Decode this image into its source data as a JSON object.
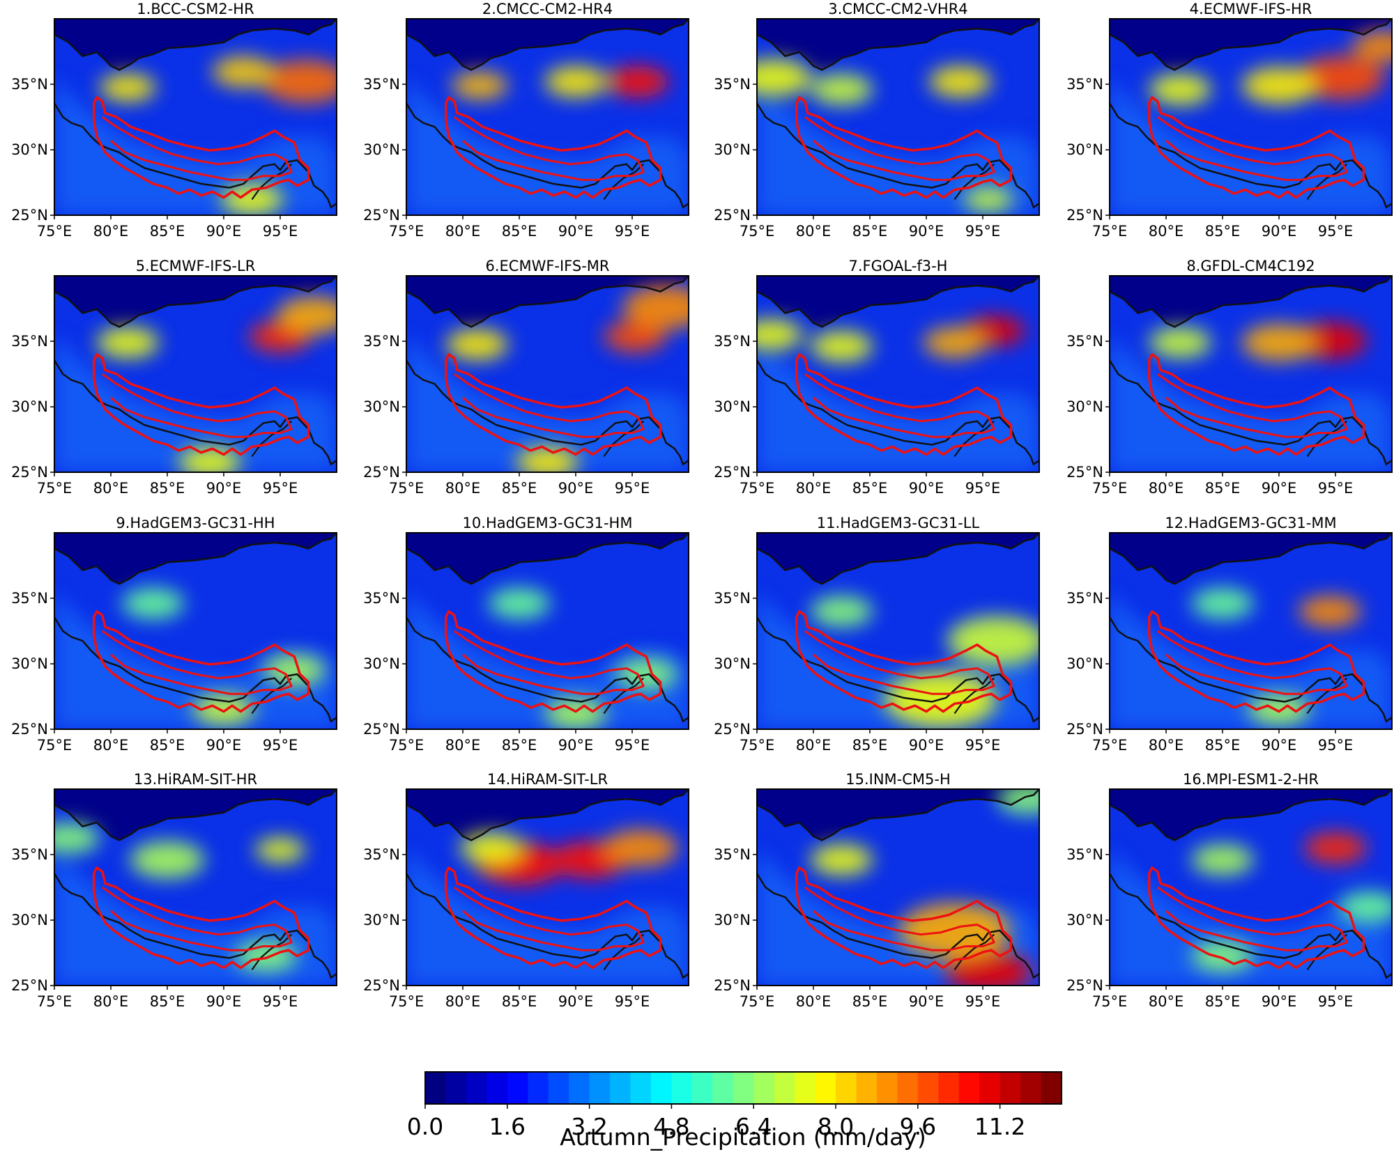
{
  "figure": {
    "colorbar": {
      "title": "Autumn_Precipitation (mm/day)",
      "ticks": [
        "0.0",
        "1.6",
        "3.2",
        "4.8",
        "6.4",
        "8.0",
        "9.6",
        "11.2"
      ],
      "range": [
        0.0,
        12.4
      ],
      "n_levels": 31,
      "colormap": "jet"
    },
    "x_ticks": [
      "75°E",
      "80°E",
      "85°E",
      "90°E",
      "95°E"
    ],
    "y_ticks": [
      "35°N",
      "30°N",
      "25°N"
    ],
    "lon_range": [
      75,
      100
    ],
    "lat_range": [
      25,
      40
    ],
    "colors": {
      "basin_outline": "#ee1111",
      "border_line": "#111111",
      "background_low": "#00007f"
    },
    "panels": [
      {
        "title": "1.BCC-CSM2-HR",
        "hot": [
          [
            0.6,
            0.26,
            0.35,
            0.09
          ],
          [
            0.8,
            0.89,
            0.32,
            0.14
          ],
          [
            0.65,
            0.67,
            0.27,
            0.1
          ],
          [
            0.55,
            0.7,
            0.92,
            0.1
          ]
        ]
      },
      {
        "title": "2.CMCC-CM2-HR4",
        "hot": [
          [
            0.68,
            0.26,
            0.34,
            0.09
          ],
          [
            0.95,
            0.82,
            0.32,
            0.1
          ],
          [
            0.6,
            0.6,
            0.32,
            0.1
          ]
        ]
      },
      {
        "title": "3.CMCC-CM2-VHR4",
        "hot": [
          [
            0.55,
            0.06,
            0.3,
            0.12
          ],
          [
            0.5,
            0.3,
            0.36,
            0.1
          ],
          [
            0.6,
            0.72,
            0.32,
            0.1
          ],
          [
            0.5,
            0.82,
            0.92,
            0.08
          ]
        ]
      },
      {
        "title": "4.ECMWF-IFS-HR",
        "hot": [
          [
            0.55,
            0.25,
            0.36,
            0.1
          ],
          [
            0.85,
            0.82,
            0.3,
            0.14
          ],
          [
            0.75,
            0.97,
            0.14,
            0.1
          ],
          [
            0.6,
            0.6,
            0.34,
            0.12
          ]
        ]
      },
      {
        "title": "5.ECMWF-IFS-LR",
        "hot": [
          [
            0.55,
            0.26,
            0.34,
            0.1
          ],
          [
            0.9,
            0.8,
            0.31,
            0.1
          ],
          [
            0.7,
            0.92,
            0.2,
            0.12
          ],
          [
            0.55,
            0.55,
            0.95,
            0.1
          ]
        ]
      },
      {
        "title": "6.ECMWF-IFS-MR",
        "hot": [
          [
            0.6,
            0.25,
            0.35,
            0.1
          ],
          [
            0.85,
            0.81,
            0.31,
            0.1
          ],
          [
            0.75,
            0.92,
            0.16,
            0.14
          ],
          [
            0.6,
            0.5,
            0.95,
            0.1
          ]
        ]
      },
      {
        "title": "7.FGOAL-f3-H",
        "hot": [
          [
            0.55,
            0.05,
            0.3,
            0.1
          ],
          [
            0.55,
            0.3,
            0.36,
            0.1
          ],
          [
            1.0,
            0.84,
            0.28,
            0.1
          ],
          [
            0.7,
            0.7,
            0.34,
            0.1
          ]
        ]
      },
      {
        "title": "8.GFDL-CM4C192",
        "hot": [
          [
            0.5,
            0.25,
            0.34,
            0.1
          ],
          [
            1.0,
            0.78,
            0.33,
            0.12
          ],
          [
            0.7,
            0.6,
            0.34,
            0.12
          ]
        ]
      },
      {
        "title": "9.HadGEM3-GC31-HH",
        "hot": [
          [
            0.5,
            0.6,
            0.9,
            0.1
          ],
          [
            0.45,
            0.85,
            0.7,
            0.1
          ],
          [
            0.35,
            0.35,
            0.36,
            0.1
          ]
        ]
      },
      {
        "title": "10.HadGEM3-GC31-HM",
        "hot": [
          [
            0.45,
            0.6,
            0.92,
            0.1
          ],
          [
            0.4,
            0.85,
            0.72,
            0.1
          ],
          [
            0.35,
            0.4,
            0.36,
            0.1
          ]
        ]
      },
      {
        "title": "11.HadGEM3-GC31-LL",
        "hot": [
          [
            0.55,
            0.65,
            0.85,
            0.18
          ],
          [
            0.5,
            0.85,
            0.55,
            0.16
          ],
          [
            0.4,
            0.3,
            0.4,
            0.1
          ]
        ]
      },
      {
        "title": "12.HadGEM3-GC31-MM",
        "hot": [
          [
            0.75,
            0.78,
            0.4,
            0.1
          ],
          [
            0.45,
            0.6,
            0.9,
            0.1
          ],
          [
            0.35,
            0.4,
            0.36,
            0.1
          ]
        ]
      },
      {
        "title": "13.HiRAM-SIT-HR",
        "hot": [
          [
            0.55,
            0.8,
            0.31,
            0.08
          ],
          [
            0.45,
            0.4,
            0.36,
            0.12
          ],
          [
            0.4,
            0.05,
            0.25,
            0.1
          ],
          [
            0.4,
            0.75,
            0.85,
            0.1
          ]
        ]
      },
      {
        "title": "14.HiRAM-SIT-LR",
        "hot": [
          [
            0.95,
            0.4,
            0.38,
            0.14
          ],
          [
            0.95,
            0.65,
            0.36,
            0.12
          ],
          [
            0.75,
            0.83,
            0.3,
            0.12
          ],
          [
            0.55,
            0.3,
            0.3,
            0.1
          ]
        ]
      },
      {
        "title": "15.INM-CM5-H",
        "hot": [
          [
            1.0,
            0.82,
            0.93,
            0.14
          ],
          [
            0.7,
            0.7,
            0.72,
            0.18
          ],
          [
            0.55,
            0.3,
            0.36,
            0.1
          ],
          [
            0.4,
            0.96,
            0.05,
            0.1
          ]
        ]
      },
      {
        "title": "16.MPI-ESM1-2-HR",
        "hot": [
          [
            0.9,
            0.8,
            0.3,
            0.1
          ],
          [
            0.45,
            0.4,
            0.36,
            0.1
          ],
          [
            0.4,
            0.4,
            0.85,
            0.1
          ],
          [
            0.35,
            0.92,
            0.6,
            0.1
          ]
        ]
      }
    ]
  }
}
